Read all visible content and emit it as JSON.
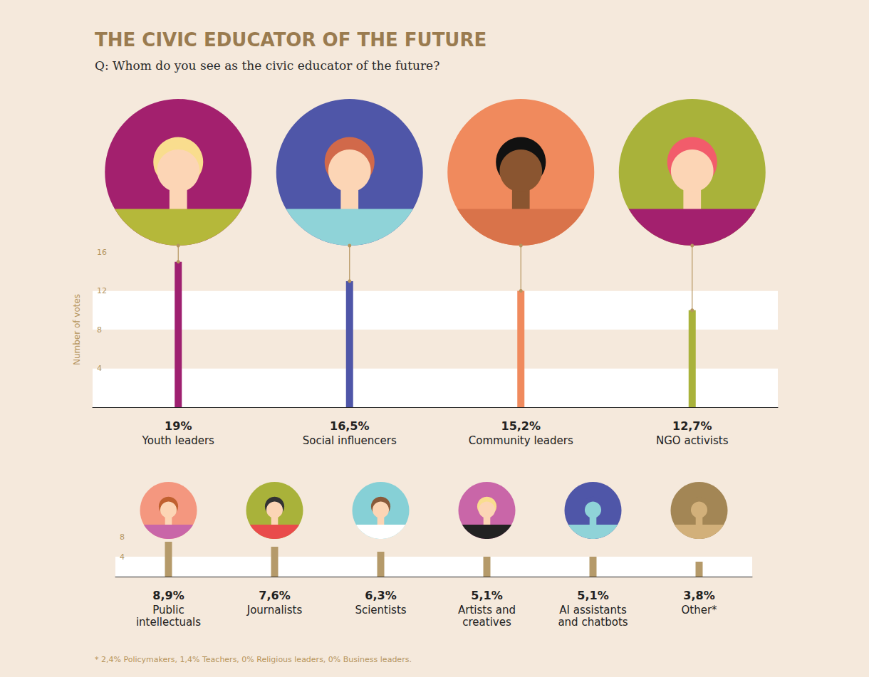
{
  "title": "THE CIVIC EDUCATOR OF THE FUTURE",
  "subtitle": "Q: Whom do you see as the civic educator of the future?",
  "footnote": "* 2,4% Policymakers, 1,4% Teachers, 0% Religious leaders, 0% Business leaders.",
  "chart_data": [
    {
      "type": "bar",
      "y_label": "Number of votes",
      "categories": [
        "Youth leaders",
        "Social influencers",
        "Community leaders",
        "NGO activists"
      ],
      "values": [
        15,
        13,
        12,
        10
      ],
      "colors": [
        "#9e2070",
        "#4f56a8",
        "#f08a5d",
        "#a9b23a"
      ],
      "shares": [
        19,
        16.5,
        15.2,
        12.7
      ],
      "share_labels": [
        "19%",
        "16,5%",
        "15,2%",
        "12,7%"
      ],
      "ylim": [
        0,
        16
      ],
      "yticks": [
        4,
        8,
        12,
        16
      ],
      "grid": true
    },
    {
      "type": "bar",
      "categories": [
        "Public intellectuals",
        "Journalists",
        "Scientists",
        "Artists and creatives",
        "AI assistants and chatbots",
        "Other*"
      ],
      "values": [
        7,
        6,
        5,
        4,
        4,
        3
      ],
      "colors": [
        "#b59a6a",
        "#b59a6a",
        "#b59a6a",
        "#b59a6a",
        "#b59a6a",
        "#b59a6a"
      ],
      "shares": [
        8.9,
        7.6,
        6.3,
        5.1,
        5.1,
        3.8
      ],
      "share_labels": [
        "8,9%",
        "7,6%",
        "6,3%",
        "5,1%",
        "5,1%",
        "3,8%"
      ],
      "ylim": [
        0,
        8
      ],
      "yticks": [
        4,
        8
      ],
      "grid": true
    }
  ]
}
